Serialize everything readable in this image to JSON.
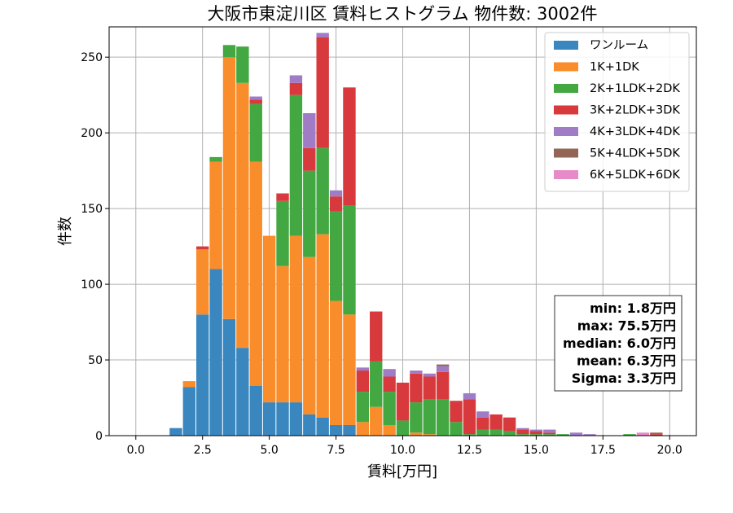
{
  "chart_data": {
    "type": "bar",
    "stacked": true,
    "title": "大阪市東淀川区 賃料ヒストグラム 物件数: 3002件",
    "xlabel": "賃料[万円]",
    "ylabel": "件数",
    "xlim": [
      -1.0,
      21.0
    ],
    "ylim": [
      0,
      270
    ],
    "x_ticks": [
      "0.0",
      "2.5",
      "5.0",
      "7.5",
      "10.0",
      "12.5",
      "15.0",
      "17.5",
      "20.0"
    ],
    "y_ticks": [
      "0",
      "50",
      "100",
      "150",
      "200",
      "250"
    ],
    "grid": true,
    "legend_position": "top-right",
    "bin_width": 0.5,
    "bin_starts": [
      1.25,
      1.75,
      2.25,
      2.75,
      3.25,
      3.75,
      4.25,
      4.75,
      5.25,
      5.75,
      6.25,
      6.75,
      7.25,
      7.75,
      8.25,
      8.75,
      9.25,
      9.75,
      10.25,
      10.75,
      11.25,
      11.75,
      12.25,
      12.75,
      13.25,
      13.75,
      14.25,
      14.75,
      15.25,
      15.75,
      16.25,
      16.75,
      17.25,
      17.75,
      18.25,
      18.75,
      19.25
    ],
    "series": [
      {
        "name": "ワンルーム",
        "color": "#3a87c0",
        "values": [
          5,
          32,
          80,
          110,
          77,
          58,
          33,
          22,
          22,
          22,
          14,
          12,
          7,
          7,
          0,
          0,
          0,
          0,
          0,
          0,
          0,
          0,
          0,
          0,
          0,
          0,
          0,
          0,
          0,
          0,
          0,
          0,
          0,
          0,
          0,
          0,
          0
        ]
      },
      {
        "name": "1K+1DK",
        "color": "#f98d2b",
        "values": [
          0,
          4,
          43,
          71,
          173,
          175,
          148,
          110,
          90,
          110,
          104,
          121,
          82,
          73,
          9,
          19,
          7,
          0,
          2,
          1,
          0,
          0,
          0,
          0,
          0,
          0,
          0,
          0,
          0,
          0,
          0,
          0,
          0,
          0,
          0,
          0,
          0
        ]
      },
      {
        "name": "2K+1LDK+2DK",
        "color": "#43a842",
        "values": [
          0,
          0,
          0,
          3,
          8,
          24,
          38,
          0,
          43,
          93,
          57,
          57,
          59,
          72,
          20,
          30,
          22,
          10,
          20,
          23,
          24,
          9,
          1,
          4,
          4,
          3,
          1,
          1,
          1,
          1,
          0,
          0,
          0,
          0,
          1,
          0,
          0
        ]
      },
      {
        "name": "3K+2LDK+3DK",
        "color": "#d8393c",
        "values": [
          0,
          0,
          2,
          0,
          0,
          0,
          3,
          0,
          5,
          8,
          15,
          73,
          10,
          78,
          14,
          33,
          10,
          25,
          19,
          15,
          18,
          14,
          23,
          8,
          10,
          9,
          3,
          2,
          1,
          0,
          0,
          0,
          0,
          0,
          0,
          0,
          1
        ]
      },
      {
        "name": "4K+3LDK+4DK",
        "color": "#a07bc6",
        "values": [
          0,
          0,
          0,
          0,
          0,
          0,
          2,
          0,
          0,
          5,
          23,
          3,
          4,
          0,
          2,
          0,
          5,
          0,
          2,
          2,
          4,
          0,
          4,
          4,
          0,
          0,
          1,
          1,
          2,
          0,
          2,
          1,
          0,
          0,
          0,
          0,
          0
        ]
      },
      {
        "name": "5K+4LDK+5DK",
        "color": "#936555",
        "values": [
          0,
          0,
          0,
          0,
          0,
          0,
          0,
          0,
          0,
          0,
          0,
          0,
          0,
          0,
          0,
          0,
          0,
          0,
          0,
          0,
          1,
          0,
          0,
          0,
          0,
          0,
          0,
          0,
          0,
          0,
          0,
          0,
          0,
          0,
          0,
          0,
          1
        ]
      },
      {
        "name": "6K+5LDK+6DK",
        "color": "#e78ac8",
        "values": [
          0,
          0,
          0,
          0,
          0,
          0,
          0,
          0,
          0,
          0,
          0,
          0,
          0,
          0,
          0,
          0,
          0,
          0,
          0,
          0,
          0,
          0,
          0,
          0,
          0,
          0,
          0,
          0,
          0,
          0,
          0,
          0,
          0,
          0,
          0,
          2,
          0
        ]
      }
    ],
    "annotations": [
      "min: 1.8万円",
      "max: 75.5万円",
      "median: 6.0万円",
      "mean: 6.3万円",
      "Sigma: 3.3万円"
    ]
  }
}
